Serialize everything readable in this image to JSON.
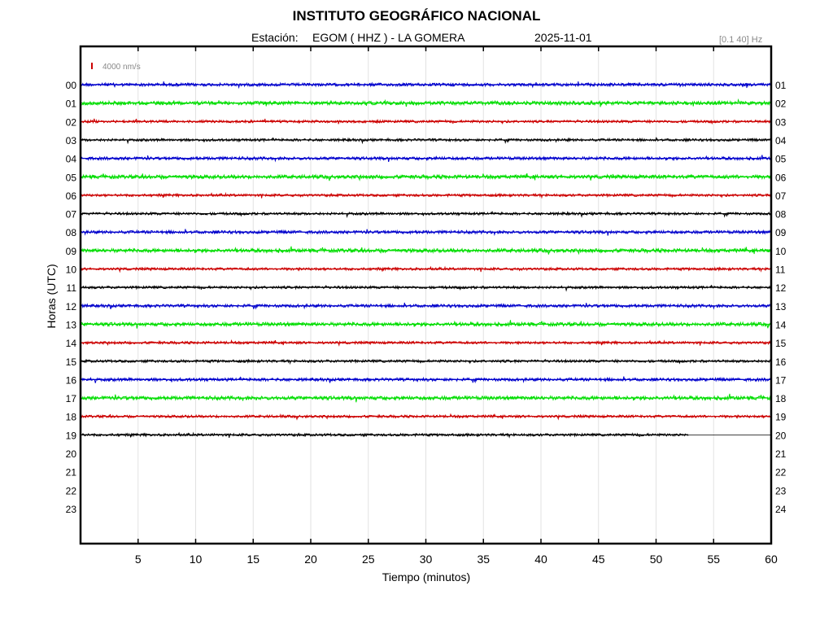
{
  "header": {
    "institution": "INSTITUTO GEOGRÁFICO NACIONAL",
    "station_label": "Estación:",
    "station": "EGOM ( HHZ ) - LA GOMERA",
    "date": "2025-11-01",
    "band": "[0.1 40] Hz"
  },
  "chart_data": {
    "type": "line",
    "title": "INSTITUTO GEOGRÁFICO NACIONAL",
    "xlabel": "Tiempo (minutos)",
    "ylabel": "Horas (UTC)",
    "xlim": [
      0,
      60
    ],
    "x_ticks": [
      5,
      10,
      15,
      20,
      25,
      30,
      35,
      40,
      45,
      50,
      55,
      60
    ],
    "y_ticks_left": [
      "00",
      "01",
      "02",
      "03",
      "04",
      "05",
      "06",
      "07",
      "08",
      "09",
      "10",
      "11",
      "12",
      "13",
      "14",
      "15",
      "16",
      "17",
      "18",
      "19",
      "20",
      "21",
      "22",
      "23"
    ],
    "y_ticks_right": [
      "01",
      "02",
      "03",
      "04",
      "05",
      "06",
      "07",
      "08",
      "09",
      "10",
      "11",
      "12",
      "13",
      "14",
      "15",
      "16",
      "17",
      "18",
      "19",
      "20",
      "21",
      "22",
      "23",
      "24"
    ],
    "scale_label": "4000 nm/s",
    "grid": "vertical",
    "colors": [
      "#0000cc",
      "#00dd00",
      "#cc0000",
      "#000000"
    ],
    "traces": [
      {
        "hour": "00",
        "end_minute": 60
      },
      {
        "hour": "01",
        "end_minute": 60
      },
      {
        "hour": "02",
        "end_minute": 60
      },
      {
        "hour": "03",
        "end_minute": 60
      },
      {
        "hour": "04",
        "end_minute": 60
      },
      {
        "hour": "05",
        "end_minute": 60
      },
      {
        "hour": "06",
        "end_minute": 60
      },
      {
        "hour": "07",
        "end_minute": 60
      },
      {
        "hour": "08",
        "end_minute": 60
      },
      {
        "hour": "09",
        "end_minute": 60
      },
      {
        "hour": "10",
        "end_minute": 60
      },
      {
        "hour": "11",
        "end_minute": 60
      },
      {
        "hour": "12",
        "end_minute": 60
      },
      {
        "hour": "13",
        "end_minute": 60
      },
      {
        "hour": "14",
        "end_minute": 60
      },
      {
        "hour": "15",
        "end_minute": 60
      },
      {
        "hour": "16",
        "end_minute": 60
      },
      {
        "hour": "17",
        "end_minute": 60
      },
      {
        "hour": "18",
        "end_minute": 60
      },
      {
        "hour": "19",
        "end_minute": 52.8
      }
    ]
  }
}
